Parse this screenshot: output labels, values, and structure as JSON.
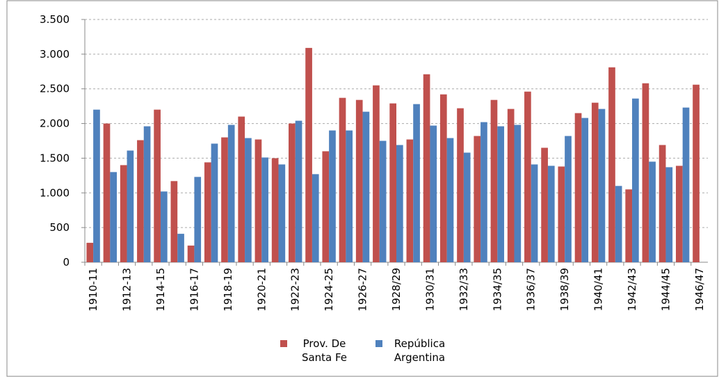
{
  "chart_data": {
    "type": "bar",
    "categories": [
      "1910-11",
      null,
      "1912-13",
      null,
      "1914-15",
      null,
      "1916-17",
      null,
      "1918-19",
      null,
      "1920-21",
      null,
      "1922-23",
      null,
      "1924-25",
      null,
      "1926-27",
      null,
      "1928/29",
      null,
      "1930/31",
      null,
      "1932/33",
      null,
      "1934/35",
      null,
      "1936/37",
      null,
      "1938/39",
      null,
      "1940/41",
      null,
      "1942/43",
      null,
      "1944/45",
      null,
      "1946/47"
    ],
    "series": [
      {
        "name": "Prov. De Santa Fe",
        "color": "#c0504d",
        "values": [
          280,
          2000,
          1400,
          1760,
          2200,
          1170,
          240,
          1440,
          1800,
          2100,
          1770,
          1500,
          2000,
          3090,
          1600,
          2370,
          2340,
          2550,
          2290,
          1770,
          2710,
          2420,
          2220,
          1820,
          2340,
          2210,
          2460,
          1650,
          1380,
          2150,
          2300,
          2810,
          1050,
          2580,
          1690,
          1390,
          2560
        ]
      },
      {
        "name": "República Argentina",
        "color": "#4f81bd",
        "values": [
          2200,
          1300,
          1610,
          1960,
          1020,
          410,
          1230,
          1710,
          1980,
          1790,
          1510,
          1410,
          2040,
          1270,
          1900,
          1900,
          2170,
          1750,
          1690,
          2280,
          1970,
          1790,
          1580,
          2020,
          1960,
          1980,
          1410,
          1390,
          1820,
          2080,
          2210,
          1100,
          2360,
          1450,
          1370,
          2230,
          null
        ]
      }
    ],
    "ylim": [
      0,
      3500
    ],
    "yticks": [
      0,
      500,
      {
        "value": 1000,
        "label": "1.000"
      },
      {
        "value": 1500,
        "label": "1.500"
      },
      {
        "value": 2000,
        "label": "2.000"
      },
      {
        "value": 2500,
        "label": "2.500"
      },
      {
        "value": 3000,
        "label": "3.000"
      },
      {
        "value": 3500,
        "label": "3.500"
      }
    ],
    "grid": true,
    "legend": "bottom"
  }
}
